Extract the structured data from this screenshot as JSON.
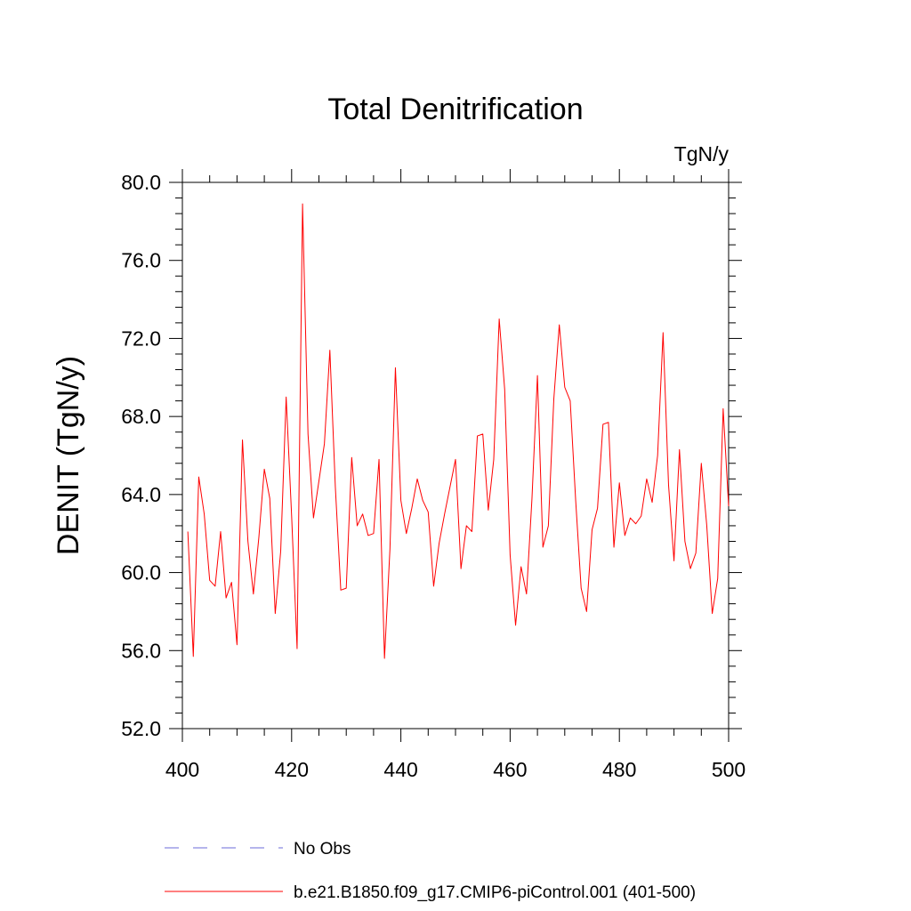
{
  "chart_data": {
    "type": "line",
    "title": "Total Denitrification",
    "units": "TgN/y",
    "xlabel": "",
    "ylabel": "DENIT  (TgN/y)",
    "xlim": [
      400,
      500
    ],
    "ylim": [
      52,
      80
    ],
    "xticks": [
      400,
      420,
      440,
      460,
      480,
      500
    ],
    "xtick_labels": [
      "400",
      "420",
      "440",
      "460",
      "480",
      "500"
    ],
    "yticks": [
      52,
      56,
      60,
      64,
      68,
      72,
      76,
      80
    ],
    "ytick_labels": [
      "52.0",
      "56.0",
      "60.0",
      "64.0",
      "68.0",
      "72.0",
      "76.0",
      "80.0"
    ],
    "grid": false,
    "legend_position": "bottom-left",
    "series": [
      {
        "name": "No Obs",
        "style": "dashed",
        "color": "#6b6bd8",
        "x": [],
        "values": []
      },
      {
        "name": "b.e21.B1850.f09_g17.CMIP6-piControl.001 (401-500)",
        "style": "solid",
        "color": "#ff0000",
        "x": [
          401,
          402,
          403,
          404,
          405,
          406,
          407,
          408,
          409,
          410,
          411,
          412,
          413,
          414,
          415,
          416,
          417,
          418,
          419,
          420,
          421,
          422,
          423,
          424,
          425,
          426,
          427,
          428,
          429,
          430,
          431,
          432,
          433,
          434,
          435,
          436,
          437,
          438,
          439,
          440,
          441,
          442,
          443,
          444,
          445,
          446,
          447,
          448,
          449,
          450,
          451,
          452,
          453,
          454,
          455,
          456,
          457,
          458,
          459,
          460,
          461,
          462,
          463,
          464,
          465,
          466,
          467,
          468,
          469,
          470,
          471,
          472,
          473,
          474,
          475,
          476,
          477,
          478,
          479,
          480,
          481,
          482,
          483,
          484,
          485,
          486,
          487,
          488,
          489,
          490,
          491,
          492,
          493,
          494,
          495,
          496,
          497,
          498,
          499,
          500
        ],
        "values": [
          62.1,
          55.7,
          64.9,
          63.0,
          59.6,
          59.3,
          62.1,
          58.7,
          59.5,
          56.3,
          66.8,
          61.6,
          58.9,
          61.8,
          65.3,
          63.8,
          57.9,
          61.1,
          69.0,
          62.9,
          56.1,
          78.9,
          67.1,
          62.8,
          64.7,
          66.6,
          71.4,
          64.4,
          59.1,
          59.2,
          65.9,
          62.4,
          63.0,
          61.9,
          62.0,
          65.8,
          55.6,
          61.2,
          70.5,
          63.7,
          62.0,
          63.3,
          64.8,
          63.7,
          63.1,
          59.3,
          61.5,
          63.0,
          64.4,
          65.8,
          60.2,
          62.4,
          62.1,
          67.0,
          67.1,
          63.2,
          65.8,
          73.0,
          69.4,
          60.9,
          57.3,
          60.3,
          58.9,
          63.8,
          70.1,
          61.3,
          62.4,
          68.9,
          72.7,
          69.5,
          68.8,
          63.7,
          59.2,
          58.0,
          62.2,
          63.3,
          67.6,
          67.7,
          61.3,
          64.6,
          61.9,
          62.8,
          62.5,
          62.9,
          64.8,
          63.6,
          66.0,
          72.3,
          64.5,
          60.6,
          66.3,
          61.6,
          60.2,
          61.0,
          65.6,
          62.4,
          57.9,
          59.7,
          68.4,
          63.4
        ]
      }
    ]
  }
}
